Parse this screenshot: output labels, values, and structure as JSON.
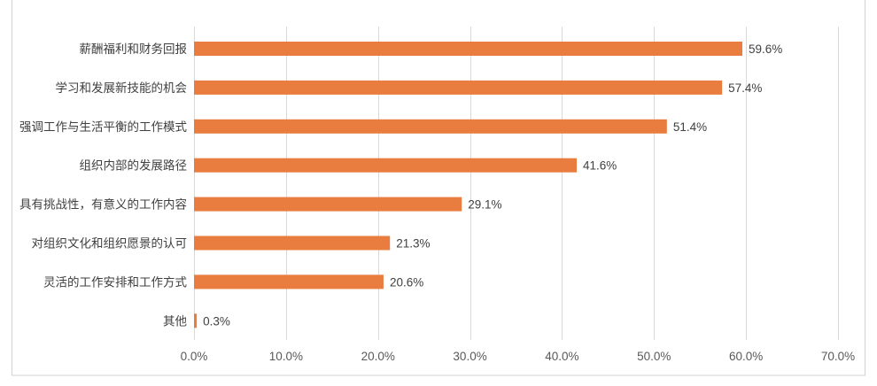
{
  "chart_data": {
    "type": "bar",
    "orientation": "horizontal",
    "categories": [
      "薪酬福利和财务回报",
      "学习和发展新技能的机会",
      "强调工作与生活平衡的工作模式",
      "组织内部的发展路径",
      "具有挑战性，有意义的工作内容",
      "对组织文化和组织愿景的认可",
      "灵活的工作安排和工作方式",
      "其他"
    ],
    "values": [
      59.6,
      57.4,
      51.4,
      41.6,
      29.1,
      21.3,
      20.6,
      0.3
    ],
    "data_labels": [
      "59.6%",
      "57.4%",
      "51.4%",
      "41.6%",
      "29.1%",
      "21.3%",
      "20.6%",
      "0.3%"
    ],
    "xlim": [
      0,
      70
    ],
    "x_ticks": [
      0,
      10,
      20,
      30,
      40,
      50,
      60,
      70
    ],
    "x_tick_labels": [
      "0.0%",
      "10.0%",
      "20.0%",
      "30.0%",
      "40.0%",
      "50.0%",
      "60.0%",
      "70.0%"
    ],
    "grid": "vertical",
    "legend": "none",
    "bar_color": "#e97d3f"
  }
}
